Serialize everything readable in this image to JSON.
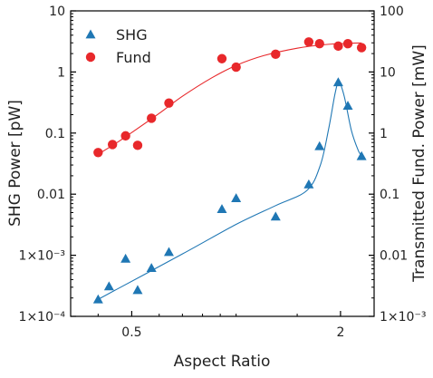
{
  "chart_data": {
    "type": "scatter",
    "xlabel": "Aspect Ratio",
    "ylabel_left": "SHG Power [pW]",
    "ylabel_right": "Transmitted Fund. Power [mW]",
    "x_scale": "log",
    "xlim": [
      0.3333,
      2.5
    ],
    "y_left_scale": "log",
    "y_left_lim": [
      0.0001,
      10
    ],
    "y_right_scale": "log",
    "y_right_lim": [
      0.001,
      100
    ],
    "x_ticks": [
      {
        "value": 0.5,
        "label": "0.5"
      },
      {
        "value": 2,
        "label": "2"
      }
    ],
    "y_left_ticks": [
      {
        "value": 10,
        "label": "10"
      },
      {
        "value": 1,
        "label": "1"
      },
      {
        "value": 0.1,
        "label": "0.1"
      },
      {
        "value": 0.01,
        "label": "0.01"
      },
      {
        "value": 0.001,
        "label": "1×10⁻³"
      },
      {
        "value": 0.0001,
        "label": "1×10⁻⁴"
      }
    ],
    "y_right_ticks": [
      {
        "value": 100,
        "label": "100"
      },
      {
        "value": 10,
        "label": "10"
      },
      {
        "value": 1,
        "label": "1"
      },
      {
        "value": 0.1,
        "label": "0.1"
      },
      {
        "value": 0.01,
        "label": "0.01"
      },
      {
        "value": 0.001,
        "label": "1×10⁻³"
      }
    ],
    "legend": {
      "position": "top-left"
    },
    "grid": false,
    "series": [
      {
        "name": "SHG",
        "axis": "left",
        "marker": "triangle",
        "color": "#1f77b4",
        "points": [
          {
            "x": 0.4,
            "y": 0.00019
          },
          {
            "x": 0.43,
            "y": 0.00031
          },
          {
            "x": 0.48,
            "y": 0.00088
          },
          {
            "x": 0.52,
            "y": 0.00027
          },
          {
            "x": 0.57,
            "y": 0.00062
          },
          {
            "x": 0.64,
            "y": 0.00113
          },
          {
            "x": 0.91,
            "y": 0.0057
          },
          {
            "x": 1.0,
            "y": 0.0086
          },
          {
            "x": 1.3,
            "y": 0.0043
          },
          {
            "x": 1.62,
            "y": 0.0145
          },
          {
            "x": 1.74,
            "y": 0.061
          },
          {
            "x": 1.97,
            "y": 0.68
          },
          {
            "x": 2.1,
            "y": 0.28
          },
          {
            "x": 2.3,
            "y": 0.042
          }
        ],
        "fit": [
          {
            "x": 0.4,
            "y": 0.00019
          },
          {
            "x": 0.7,
            "y": 0.00105
          },
          {
            "x": 1.0,
            "y": 0.0032
          },
          {
            "x": 1.3,
            "y": 0.0065
          },
          {
            "x": 1.6,
            "y": 0.0115
          },
          {
            "x": 1.75,
            "y": 0.03
          },
          {
            "x": 1.85,
            "y": 0.12
          },
          {
            "x": 1.93,
            "y": 0.45
          },
          {
            "x": 1.98,
            "y": 0.68
          },
          {
            "x": 2.05,
            "y": 0.4
          },
          {
            "x": 2.15,
            "y": 0.11
          },
          {
            "x": 2.25,
            "y": 0.052
          },
          {
            "x": 2.3,
            "y": 0.043
          }
        ]
      },
      {
        "name": "Fund",
        "axis": "right",
        "marker": "circle",
        "color": "#e8282b",
        "points": [
          {
            "x": 0.4,
            "y": 0.48
          },
          {
            "x": 0.44,
            "y": 0.65
          },
          {
            "x": 0.48,
            "y": 0.9
          },
          {
            "x": 0.52,
            "y": 0.63
          },
          {
            "x": 0.57,
            "y": 1.75
          },
          {
            "x": 0.64,
            "y": 3.1
          },
          {
            "x": 0.91,
            "y": 16.5
          },
          {
            "x": 1.0,
            "y": 12.0
          },
          {
            "x": 1.3,
            "y": 19.5
          },
          {
            "x": 1.62,
            "y": 31.0
          },
          {
            "x": 1.74,
            "y": 29.0
          },
          {
            "x": 1.97,
            "y": 26.5
          },
          {
            "x": 2.1,
            "y": 29.0
          },
          {
            "x": 2.3,
            "y": 25.0
          }
        ],
        "fit": [
          {
            "x": 0.4,
            "y": 0.45
          },
          {
            "x": 0.45,
            "y": 0.68
          },
          {
            "x": 0.5,
            "y": 1.02
          },
          {
            "x": 0.6,
            "y": 2.1
          },
          {
            "x": 0.7,
            "y": 4.0
          },
          {
            "x": 0.85,
            "y": 8.0
          },
          {
            "x": 1.0,
            "y": 12.8
          },
          {
            "x": 1.2,
            "y": 18.5
          },
          {
            "x": 1.5,
            "y": 24.5
          },
          {
            "x": 1.8,
            "y": 28.0
          },
          {
            "x": 2.1,
            "y": 29.5
          },
          {
            "x": 2.3,
            "y": 29.8
          }
        ]
      }
    ]
  }
}
